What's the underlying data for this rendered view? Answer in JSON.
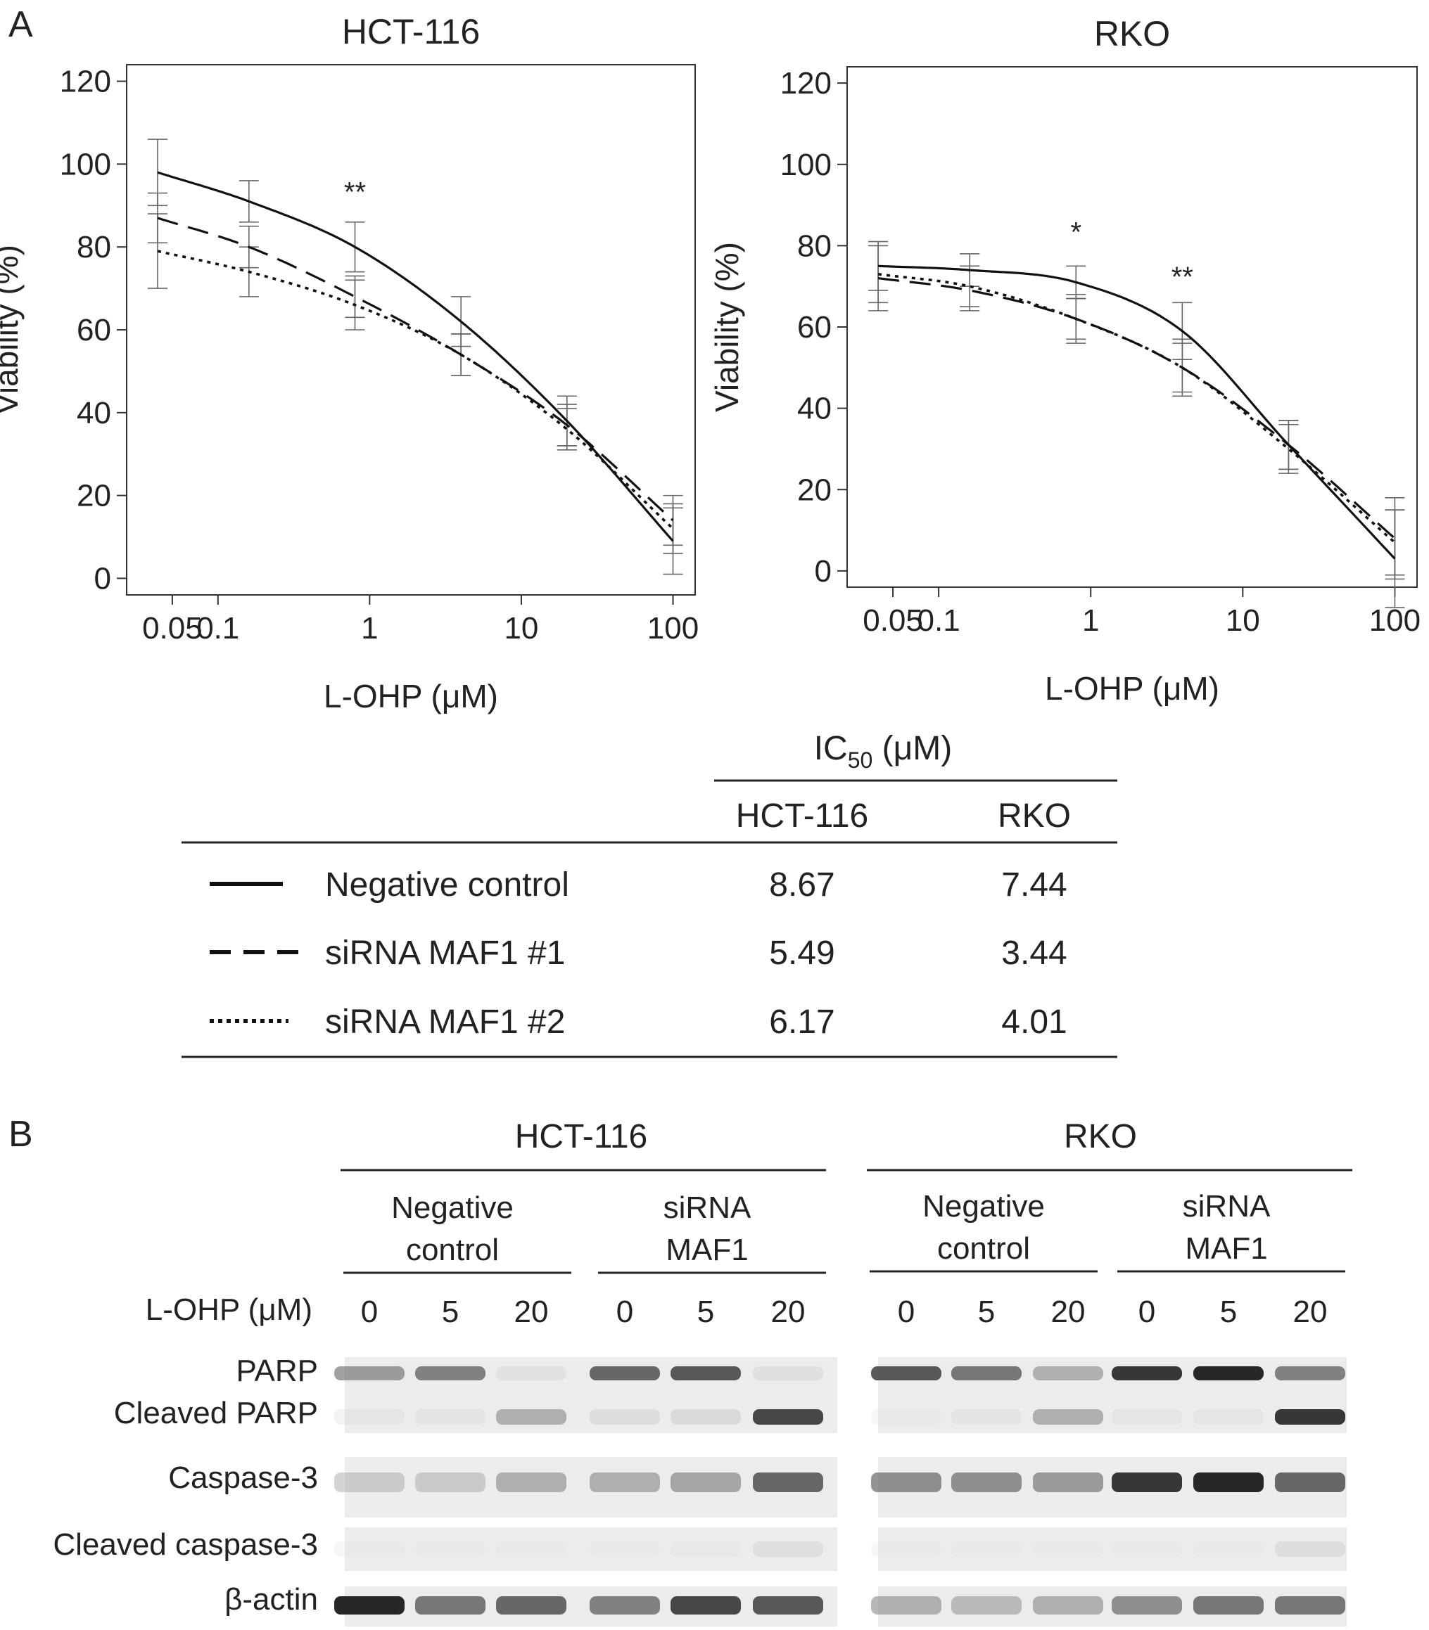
{
  "panels": {
    "a": "A",
    "b": "B"
  },
  "chart_data": [
    {
      "type": "line",
      "title": "HCT-116",
      "xlabel": "L-OHP (μM)",
      "ylabel": "Viability (%)",
      "xscale": "log",
      "xlim": [
        0.025,
        140
      ],
      "ylim": [
        -4,
        124
      ],
      "xticks": [
        0.05,
        0.1,
        1,
        10,
        100
      ],
      "xtick_labels": [
        "0.05",
        "0.1",
        "1",
        "10",
        "100"
      ],
      "yticks": [
        0,
        20,
        40,
        60,
        80,
        100,
        120
      ],
      "ytick_labels": [
        "0",
        "20",
        "40",
        "60",
        "80",
        "100",
        "120"
      ],
      "grid": false,
      "x": [
        0.04,
        0.16,
        0.8,
        4,
        20,
        100
      ],
      "series": [
        {
          "name": "Negative control",
          "style": "solid",
          "values": [
            98,
            91,
            80,
            62,
            38,
            9
          ],
          "errors": [
            8,
            5,
            6,
            6,
            6,
            8
          ]
        },
        {
          "name": "siRNA MAF1 #1",
          "style": "dashed",
          "values": [
            87,
            80,
            68,
            54,
            37,
            14
          ],
          "errors": [
            6,
            5,
            5,
            5,
            5,
            6
          ]
        },
        {
          "name": "siRNA MAF1 #2",
          "style": "dotted",
          "values": [
            79,
            74,
            66,
            54,
            36,
            12
          ],
          "errors": [
            9,
            6,
            6,
            5,
            5,
            6
          ]
        }
      ],
      "annotations": [
        {
          "text": "**",
          "x": 0.8,
          "y": 91
        }
      ]
    },
    {
      "type": "line",
      "title": "RKO",
      "xlabel": "L-OHP (μM)",
      "ylabel": "Viability (%)",
      "xscale": "log",
      "xlim": [
        0.025,
        140
      ],
      "ylim": [
        -4,
        124
      ],
      "xticks": [
        0.05,
        0.1,
        1,
        10,
        100
      ],
      "xtick_labels": [
        "0.05",
        "0.1",
        "1",
        "10",
        "100"
      ],
      "yticks": [
        0,
        20,
        40,
        60,
        80,
        100,
        120
      ],
      "ytick_labels": [
        "0",
        "20",
        "40",
        "60",
        "80",
        "100",
        "120"
      ],
      "grid": false,
      "x": [
        0.04,
        0.16,
        0.8,
        4,
        20,
        100
      ],
      "series": [
        {
          "name": "Negative control",
          "style": "solid",
          "values": [
            75,
            74,
            71,
            59,
            31,
            3
          ],
          "errors": [
            6,
            4,
            4,
            7,
            6,
            12
          ]
        },
        {
          "name": "siRNA MAF1 #1",
          "style": "dashed",
          "values": [
            72,
            69,
            62,
            50,
            31,
            8
          ],
          "errors": [
            8,
            5,
            6,
            6,
            6,
            10
          ]
        },
        {
          "name": "siRNA MAF1 #2",
          "style": "dotted",
          "values": [
            73,
            70,
            62,
            50,
            30,
            7
          ],
          "errors": [
            7,
            5,
            5,
            7,
            6,
            8
          ]
        }
      ],
      "annotations": [
        {
          "text": "*",
          "x": 0.8,
          "y": 81
        },
        {
          "text": "**",
          "x": 4,
          "y": 70
        }
      ]
    }
  ],
  "ic50_table": {
    "title": "IC",
    "title_sub": "50",
    "title_unit": " (μM)",
    "columns": [
      "HCT-116",
      "RKO"
    ],
    "rows": [
      {
        "label": "Negative control",
        "style": "solid",
        "values": [
          "8.67",
          "7.44"
        ]
      },
      {
        "label": "siRNA MAF1 #1",
        "style": "dashed",
        "values": [
          "5.49",
          "3.44"
        ]
      },
      {
        "label": "siRNA MAF1 #2",
        "style": "dotted",
        "values": [
          "6.17",
          "4.01"
        ]
      }
    ]
  },
  "blot": {
    "cell_lines": [
      "HCT-116",
      "RKO"
    ],
    "groups": [
      {
        "line1": "Negative",
        "line2": "control"
      },
      {
        "line1": "siRNA",
        "line2": "MAF1"
      }
    ],
    "dose_label": "L-OHP (μM)",
    "doses": [
      "0",
      "5",
      "20"
    ],
    "rows": [
      "PARP",
      "Cleaved PARP",
      "Caspase-3",
      "Cleaved caspase-3",
      "β-actin"
    ],
    "intensity": {
      "PARP": [
        [
          0.55,
          0.65,
          0.1,
          0.75,
          0.8,
          0.12
        ],
        [
          0.8,
          0.7,
          0.45,
          0.9,
          0.95,
          0.65
        ]
      ],
      "Cleaved PARP": [
        [
          0.06,
          0.08,
          0.45,
          0.15,
          0.18,
          0.85
        ],
        [
          0.02,
          0.08,
          0.45,
          0.05,
          0.05,
          0.9
        ]
      ],
      "Caspase-3": [
        [
          0.3,
          0.3,
          0.45,
          0.45,
          0.5,
          0.75
        ],
        [
          0.6,
          0.6,
          0.55,
          0.9,
          0.95,
          0.75
        ]
      ],
      "Cleaved caspase-3": [
        [
          0.0,
          0.0,
          0.0,
          0.0,
          0.02,
          0.12
        ],
        [
          0.0,
          0.0,
          0.0,
          0.0,
          0.0,
          0.15
        ]
      ],
      "β-actin": [
        [
          0.95,
          0.7,
          0.75,
          0.65,
          0.85,
          0.8
        ],
        [
          0.45,
          0.4,
          0.45,
          0.6,
          0.7,
          0.7
        ]
      ]
    }
  }
}
